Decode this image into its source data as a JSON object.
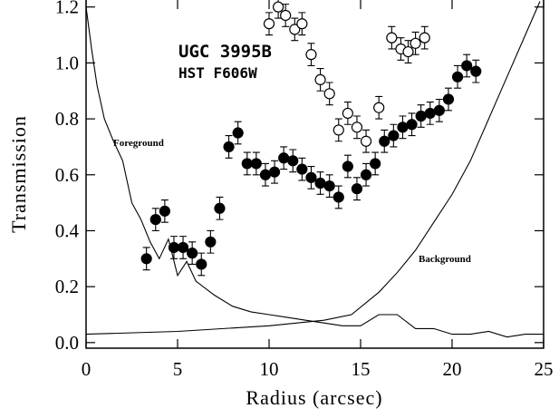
{
  "chart_data": {
    "type": "scatter",
    "xlabel": "Radius (arcsec)",
    "ylabel": "Transmission",
    "annotations": [
      "UGC 3995B",
      "HST F606W"
    ],
    "xlim": [
      0,
      25
    ],
    "ylim": [
      -0.02,
      1.225
    ],
    "xticks": [
      0,
      5,
      10,
      15,
      20,
      25
    ],
    "yticks": [
      {
        "value": 0,
        "label": "0.0"
      },
      0.2,
      0.4,
      0.6,
      0.8,
      {
        "value": 1,
        "label": "1.0"
      },
      1.2
    ],
    "points": [
      {
        "marker": "filled",
        "color": "#000000",
        "x": [
          3.3,
          3.8,
          4.3,
          4.8,
          5.3,
          5.8,
          6.3,
          6.8,
          7.3,
          7.8,
          8.3,
          8.8,
          9.3,
          9.8,
          10.3,
          10.8,
          11.3,
          11.8,
          12.3,
          12.8,
          13.3,
          13.8,
          14.3,
          14.8,
          15.3,
          15.8,
          16.3,
          16.8,
          17.3,
          17.8,
          18.3,
          18.8,
          19.3,
          19.8,
          20.3,
          20.8,
          21.3
        ],
        "values": [
          0.3,
          0.44,
          0.47,
          0.34,
          0.34,
          0.32,
          0.28,
          0.36,
          0.48,
          0.7,
          0.75,
          0.64,
          0.64,
          0.6,
          0.61,
          0.66,
          0.65,
          0.62,
          0.59,
          0.57,
          0.56,
          0.52,
          0.63,
          0.55,
          0.6,
          0.64,
          0.72,
          0.74,
          0.77,
          0.78,
          0.81,
          0.82,
          0.83,
          0.87,
          0.95,
          0.99,
          0.97
        ],
        "errors": [
          0.04,
          0.04,
          0.04,
          0.04,
          0.04,
          0.04,
          0.04,
          0.04,
          0.04,
          0.04,
          0.04,
          0.04,
          0.04,
          0.04,
          0.04,
          0.04,
          0.04,
          0.04,
          0.04,
          0.04,
          0.04,
          0.04,
          0.04,
          0.04,
          0.04,
          0.04,
          0.04,
          0.04,
          0.04,
          0.04,
          0.04,
          0.04,
          0.04,
          0.04,
          0.04,
          0.04,
          0.04
        ]
      },
      {
        "marker": "open",
        "color": "#000000",
        "x": [
          10.0,
          10.5,
          10.9,
          11.4,
          11.8,
          12.3,
          12.8,
          13.3,
          13.8,
          14.3,
          14.8,
          15.3,
          16.0,
          16.7,
          17.2,
          17.6,
          18.0,
          18.5
        ],
        "values": [
          1.14,
          1.2,
          1.17,
          1.12,
          1.14,
          1.03,
          0.94,
          0.89,
          0.76,
          0.82,
          0.77,
          0.72,
          0.84,
          1.09,
          1.05,
          1.04,
          1.07,
          1.09
        ],
        "errors": [
          0.04,
          0.04,
          0.04,
          0.04,
          0.04,
          0.04,
          0.04,
          0.04,
          0.04,
          0.04,
          0.04,
          0.04,
          0.04,
          0.04,
          0.04,
          0.04,
          0.04,
          0.04
        ]
      }
    ],
    "curves": [
      {
        "name": "Foreground",
        "color": "#000000",
        "x": [
          0,
          0.3,
          0.6,
          1,
          1.5,
          2,
          2.5,
          3,
          3.5,
          4,
          4.5,
          5,
          5.5,
          6,
          7,
          8,
          9,
          10,
          11,
          12,
          13,
          14,
          15,
          16,
          17,
          18,
          19,
          20,
          21,
          22,
          23,
          24,
          25
        ],
        "values": [
          1.2,
          1.05,
          0.92,
          0.8,
          0.72,
          0.65,
          0.5,
          0.44,
          0.36,
          0.3,
          0.37,
          0.24,
          0.29,
          0.22,
          0.17,
          0.13,
          0.11,
          0.1,
          0.09,
          0.08,
          0.07,
          0.06,
          0.06,
          0.1,
          0.1,
          0.05,
          0.05,
          0.03,
          0.03,
          0.04,
          0.02,
          0.03,
          0.03
        ]
      },
      {
        "name": "Background",
        "color": "#000000",
        "x": [
          0,
          5,
          10,
          13,
          14.5,
          16,
          17,
          18,
          19,
          20,
          21,
          22,
          23,
          24,
          24.8
        ],
        "values": [
          0.03,
          0.04,
          0.06,
          0.08,
          0.1,
          0.18,
          0.25,
          0.33,
          0.43,
          0.53,
          0.65,
          0.8,
          0.95,
          1.1,
          1.22
        ]
      }
    ]
  }
}
